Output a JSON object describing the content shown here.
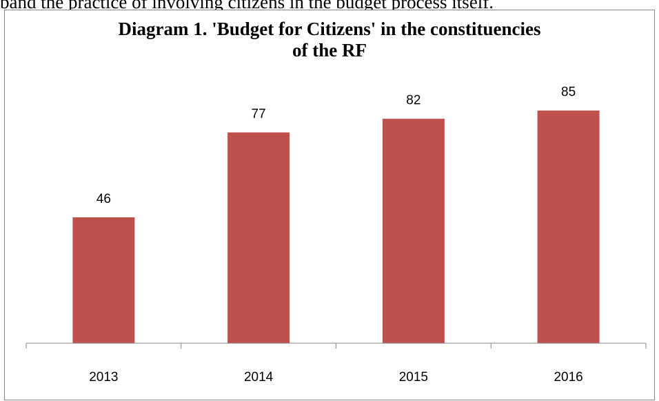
{
  "document": {
    "text_line": "band the practice of involving citizens in the budget process itself."
  },
  "chart_data": {
    "type": "bar",
    "title_line1": "Diagram 1. 'Budget for Citizens' in the constituencies",
    "title_line2": "of the RF",
    "categories": [
      "2013",
      "2014",
      "2015",
      "2016"
    ],
    "values": [
      46,
      77,
      82,
      85
    ],
    "data_labels": [
      "46",
      "77",
      "82",
      "85"
    ],
    "ylim": [
      0,
      100
    ],
    "grid": false,
    "legend": "none",
    "bar_color": "#C0504D"
  }
}
